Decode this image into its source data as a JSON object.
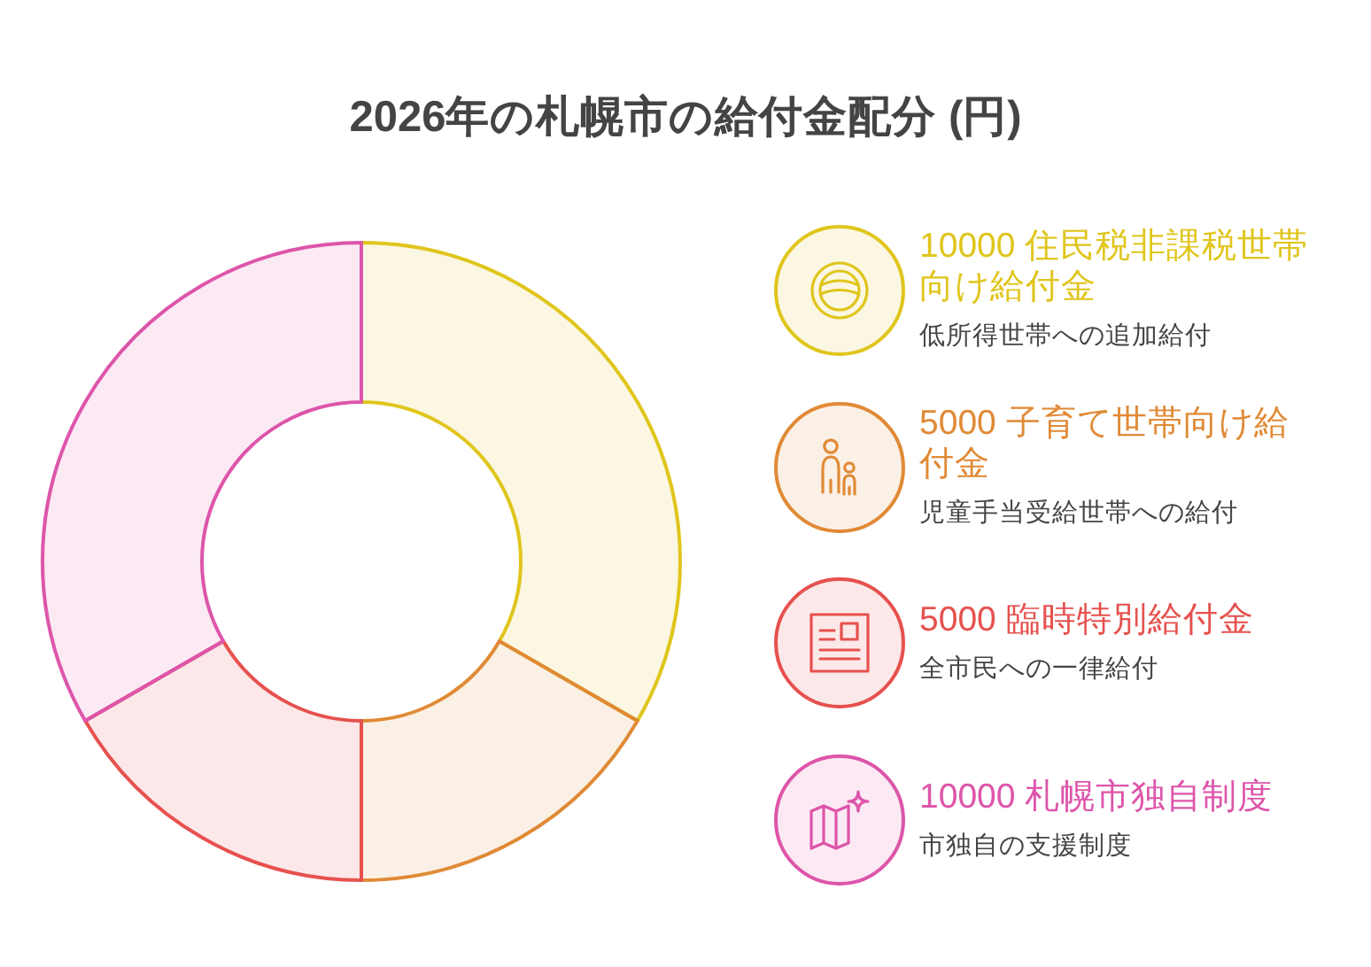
{
  "chart_data": {
    "type": "donut",
    "title": "2026年の札幌市の給付金配分 (円)",
    "categories": [
      "10000 住民税非課税世帯向け給付金",
      "5000 子育て世帯向け給付金",
      "5000 臨時特別給付金",
      "10000 札幌市独自制度"
    ],
    "values": [
      10000,
      5000,
      5000,
      10000
    ],
    "colors": [
      "#e0c51c",
      "#e08a36",
      "#e6514e",
      "#dd55aa"
    ],
    "legend": "right",
    "annotations": [
      "低所得世帯への追加給付",
      "児童手当受給世帯への給付",
      "全市民への一律給付",
      "市独自の支援制度"
    ]
  }
}
